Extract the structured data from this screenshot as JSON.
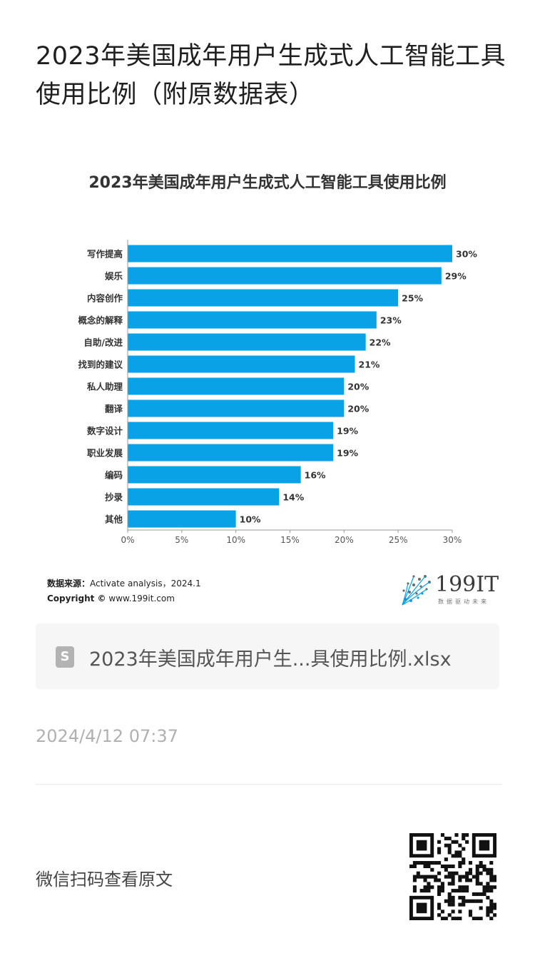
{
  "page": {
    "title": "2023年美国成年用户生成式人工智能工具使用比例（附原数据表）",
    "file_icon_letter": "S",
    "file_name": "2023年美国成年用户生...具使用比例.xlsx",
    "timestamp": "2024/4/12 07:37",
    "scan_text": "微信扫码查看原文"
  },
  "source": {
    "label": "数据来源：",
    "text": "Activate analysis，2024.1",
    "copyright_label": "Copyright ©",
    "copyright_url": "www.199it.com"
  },
  "logo": {
    "text": "199IT",
    "sub": "数据驱动未来"
  },
  "colors": {
    "bar": "#0aa2e6",
    "axis": "#999999",
    "text": "#333333"
  },
  "chart_data": {
    "type": "bar",
    "orientation": "horizontal",
    "title": "2023年美国成年用户生成式人工智能工具使用比例",
    "categories": [
      "写作提高",
      "娱乐",
      "内容创作",
      "概念的解释",
      "自助/改进",
      "找到的建议",
      "私人助理",
      "翻译",
      "数字设计",
      "职业发展",
      "编码",
      "抄录",
      "其他"
    ],
    "values": [
      30,
      29,
      25,
      23,
      22,
      21,
      20,
      20,
      19,
      19,
      16,
      14,
      10
    ],
    "value_labels": [
      "30%",
      "29%",
      "25%",
      "23%",
      "22%",
      "21%",
      "20%",
      "20%",
      "19%",
      "19%",
      "16%",
      "14%",
      "10%"
    ],
    "xlim": [
      0,
      30
    ],
    "x_ticks": [
      "0%",
      "5%",
      "10%",
      "15%",
      "20%",
      "25%",
      "30%"
    ],
    "grid": false,
    "legend": "none"
  }
}
